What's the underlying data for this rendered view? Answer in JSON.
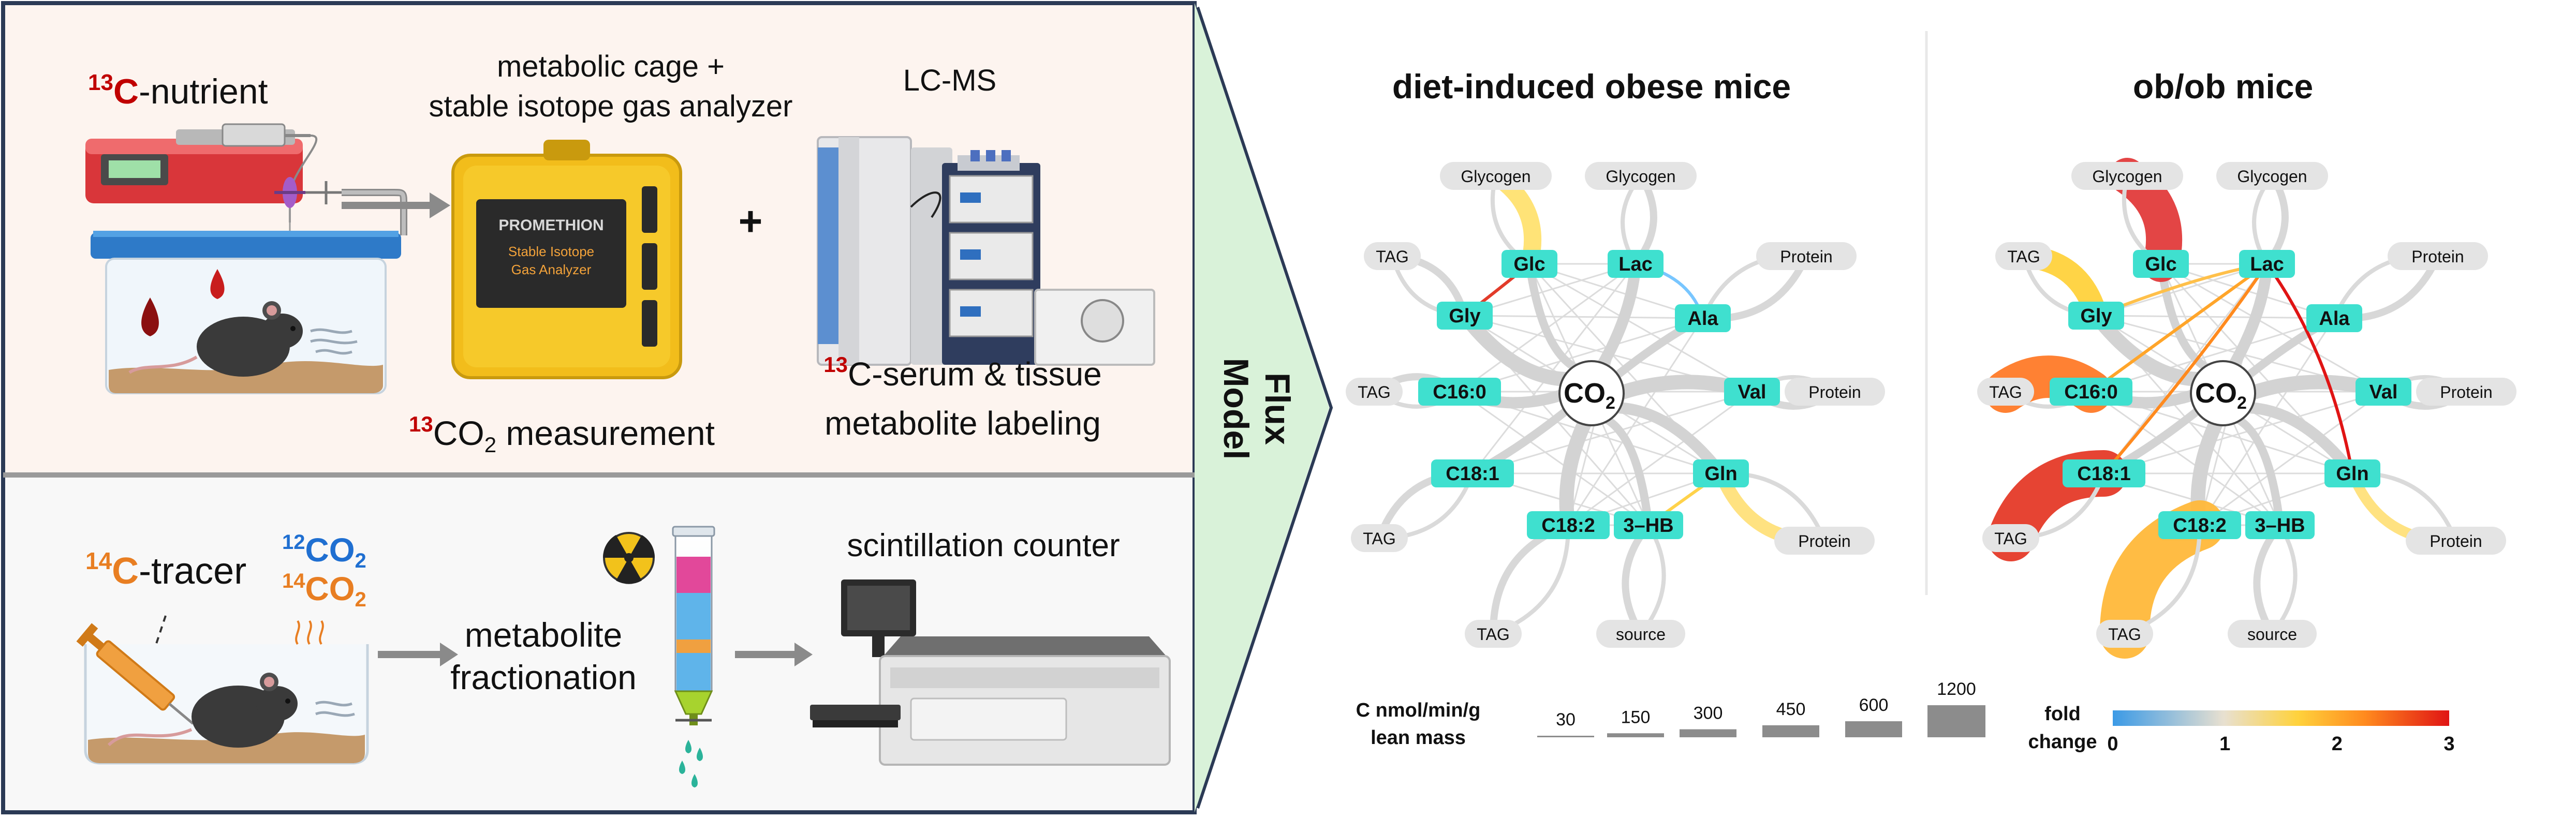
{
  "top_panel": {
    "nutrient_label": "C-nutrient",
    "nutrient_isotope": "13",
    "cage_label_line1": "metabolic cage +",
    "cage_label_line2": "stable isotope gas analyzer",
    "analyzer_brand": "PROMETHION",
    "analyzer_sub1": "Stable Isotope",
    "analyzer_sub2": "Gas Analyzer",
    "plus": "+",
    "lcms_label": "LC-MS",
    "co2_isotope": "13",
    "co2_text": "CO",
    "co2_sub": "2",
    "co2_suffix": " measurement",
    "serum_isotope": "13",
    "serum_line1": "C-serum & tissue",
    "serum_line2": "metabolite labeling"
  },
  "bottom_panel": {
    "tracer_isotope": "14",
    "tracer_label": "C-tracer",
    "co2_12_iso": "12",
    "co2_12_text": "CO",
    "co2_14_iso": "14",
    "co2_14_text": "CO",
    "co2_sub": "2",
    "fraction_line1": "metabolite",
    "fraction_line2": "fractionation",
    "counter_label": "scintillation counter"
  },
  "flux_model_label_line1": "Flux",
  "flux_model_label_line2": "Model",
  "networks": [
    {
      "title": "diet-induced obese mice",
      "center": {
        "text": "CO",
        "sub": "2"
      },
      "metabolites": [
        "Glc",
        "Lac",
        "Gly",
        "Ala",
        "C16:0",
        "Val",
        "C18:1",
        "Gln",
        "C18:2",
        "3–HB"
      ],
      "pools": [
        "Glycogen",
        "Glycogen",
        "TAG",
        "Protein",
        "TAG",
        "Protein",
        "TAG",
        "Protein",
        "TAG",
        "source"
      ]
    },
    {
      "title": "ob/ob mice",
      "center": {
        "text": "CO",
        "sub": "2"
      },
      "metabolites": [
        "Glc",
        "Lac",
        "Gly",
        "Ala",
        "C16:0",
        "Val",
        "C18:1",
        "Gln",
        "C18:2",
        "3–HB"
      ],
      "pools": [
        "Glycogen",
        "Glycogen",
        "TAG",
        "Protein",
        "TAG",
        "Protein",
        "TAG",
        "Protein",
        "TAG",
        "source"
      ]
    }
  ],
  "legend": {
    "flux_title_line1": "C nmol/min/g",
    "flux_title_line2": "lean mass",
    "flux_values": [
      30,
      150,
      300,
      450,
      600,
      1200
    ],
    "fold_title_line1": "fold",
    "fold_title_line2": "change",
    "fold_ticks": [
      "0",
      "1",
      "2",
      "3"
    ],
    "fold_colors": [
      "#3b9ae6",
      "#e8e0d0",
      "#ffd23c",
      "#ff8a1e",
      "#e01414"
    ]
  },
  "colors": {
    "metabolite_node": "#3fe0cf",
    "pool_node": "#e4e4e4",
    "flux_gray": "#cfcfcf",
    "red_text": "#c00000",
    "blue_text": "#1f6fd1",
    "orange_text": "#e87e22",
    "panel_bg": "#fdf4ef",
    "arrow_bg": "#d9f2d9"
  }
}
